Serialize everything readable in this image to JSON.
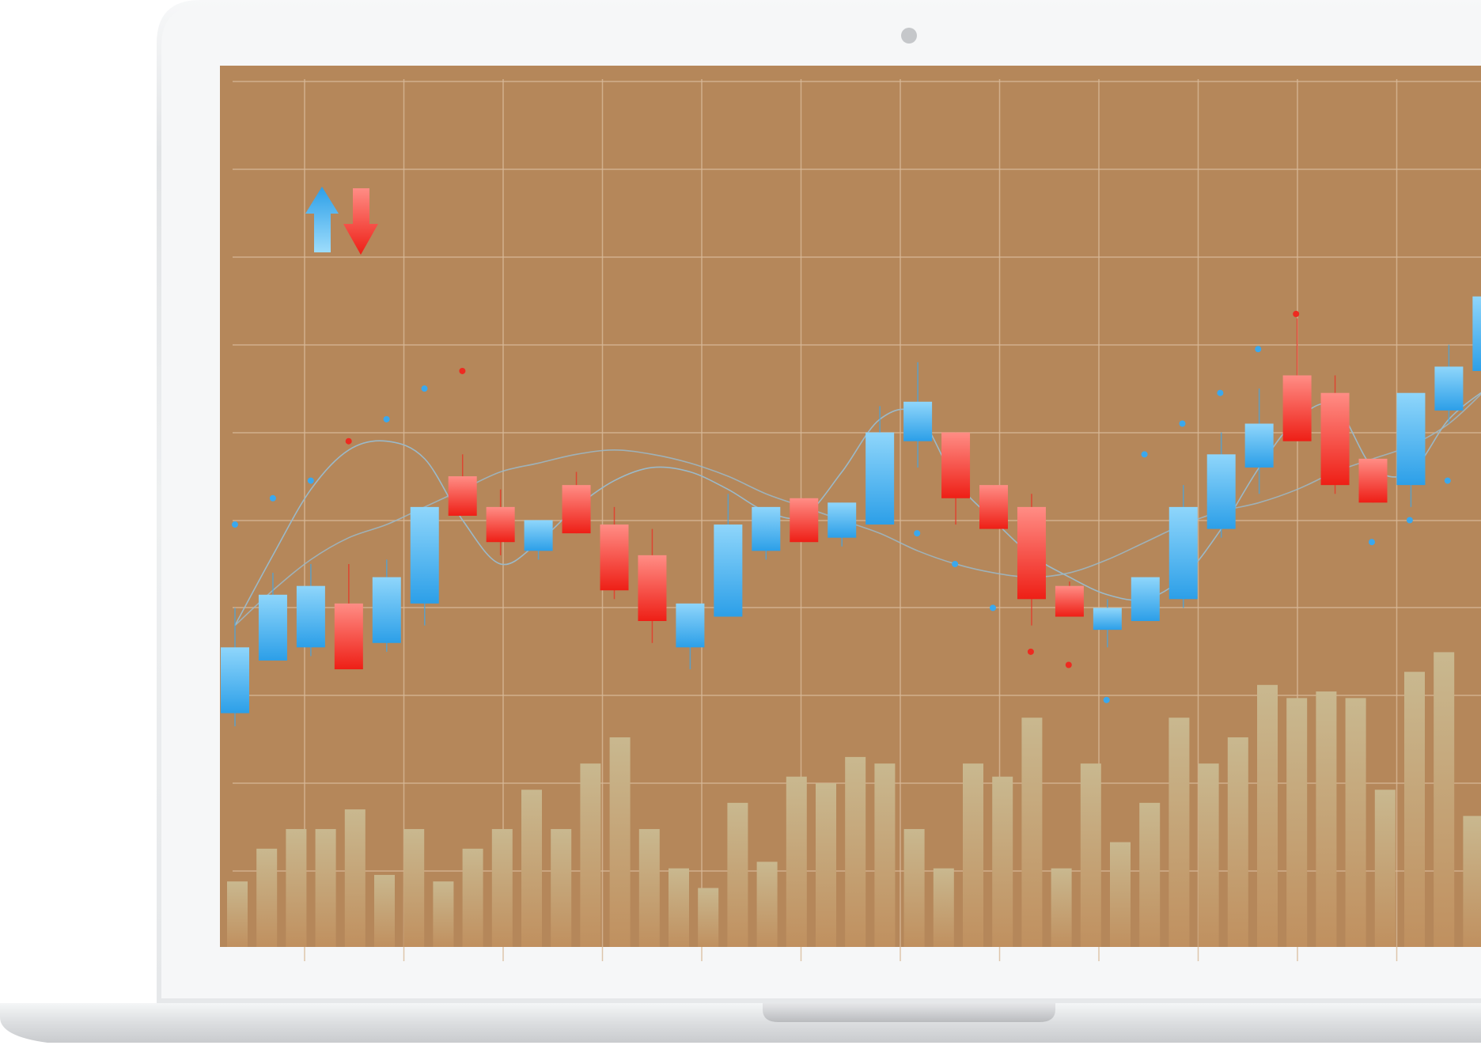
{
  "colors": {
    "screen_background": "#b5875a",
    "grid_line": "#d8b999",
    "bullish": "#3aa8ee",
    "bullish_light": "#8fe3f6",
    "bearish": "#ee2a20",
    "bearish_light": "#ff9a92",
    "volume_bar": "#c3b08a",
    "moving_average": "#9bb9c8",
    "laptop_bezel": "#f3f4f6",
    "laptop_frame": "#d6d8da",
    "laptop_base": "#dfe1e3"
  },
  "icons": {
    "up_arrow": "up-arrow-icon",
    "down_arrow": "down-arrow-icon",
    "camera": "camera-icon"
  },
  "chart_data": {
    "type": "candlestick",
    "title": "",
    "xlabel": "",
    "ylabel": "",
    "ylim": [
      0,
      10
    ],
    "grid": true,
    "legend": "none",
    "candles": [
      {
        "dir": "up",
        "open": 2.8,
        "close": 3.55,
        "high": 4.0,
        "low": 2.65
      },
      {
        "dir": "up",
        "open": 3.4,
        "close": 4.15,
        "high": 4.4,
        "low": 3.4
      },
      {
        "dir": "up",
        "open": 3.55,
        "close": 4.25,
        "high": 4.5,
        "low": 3.45
      },
      {
        "dir": "down",
        "open": 4.05,
        "close": 3.3,
        "high": 4.5,
        "low": 3.3
      },
      {
        "dir": "up",
        "open": 3.6,
        "close": 4.35,
        "high": 4.55,
        "low": 3.5
      },
      {
        "dir": "up",
        "open": 4.05,
        "close": 5.15,
        "high": 5.15,
        "low": 3.8
      },
      {
        "dir": "down",
        "open": 5.5,
        "close": 5.05,
        "high": 5.75,
        "low": 5.05
      },
      {
        "dir": "down",
        "open": 5.15,
        "close": 4.75,
        "high": 5.35,
        "low": 4.6
      },
      {
        "dir": "up",
        "open": 4.65,
        "close": 5.0,
        "high": 5.0,
        "low": 4.55
      },
      {
        "dir": "down",
        "open": 5.4,
        "close": 4.85,
        "high": 5.55,
        "low": 4.85
      },
      {
        "dir": "down",
        "open": 4.95,
        "close": 4.2,
        "high": 5.15,
        "low": 4.1
      },
      {
        "dir": "down",
        "open": 4.6,
        "close": 3.85,
        "high": 4.9,
        "low": 3.6
      },
      {
        "dir": "up",
        "open": 3.55,
        "close": 4.05,
        "high": 4.05,
        "low": 3.3
      },
      {
        "dir": "up",
        "open": 3.9,
        "close": 4.95,
        "high": 5.3,
        "low": 3.9
      },
      {
        "dir": "up",
        "open": 4.65,
        "close": 5.15,
        "high": 5.15,
        "low": 4.55
      },
      {
        "dir": "down",
        "open": 5.25,
        "close": 4.75,
        "high": 5.25,
        "low": 4.75
      },
      {
        "dir": "up",
        "open": 4.8,
        "close": 5.2,
        "high": 5.2,
        "low": 4.7
      },
      {
        "dir": "up",
        "open": 4.95,
        "close": 6.0,
        "high": 6.3,
        "low": 4.95
      },
      {
        "dir": "up",
        "open": 5.9,
        "close": 6.35,
        "high": 6.8,
        "low": 5.6
      },
      {
        "dir": "down",
        "open": 6.0,
        "close": 5.25,
        "high": 6.0,
        "low": 4.95
      },
      {
        "dir": "down",
        "open": 5.4,
        "close": 4.9,
        "high": 5.4,
        "low": 4.9
      },
      {
        "dir": "down",
        "open": 5.15,
        "close": 4.1,
        "high": 5.3,
        "low": 3.8
      },
      {
        "dir": "down",
        "open": 4.25,
        "close": 3.9,
        "high": 4.3,
        "low": 3.9
      },
      {
        "dir": "up",
        "open": 3.75,
        "close": 4.0,
        "high": 4.1,
        "low": 3.55
      },
      {
        "dir": "up",
        "open": 3.85,
        "close": 4.35,
        "high": 4.35,
        "low": 3.85
      },
      {
        "dir": "up",
        "open": 4.1,
        "close": 5.15,
        "high": 5.4,
        "low": 4.0
      },
      {
        "dir": "up",
        "open": 4.9,
        "close": 5.75,
        "high": 6.0,
        "low": 4.8
      },
      {
        "dir": "up",
        "open": 5.6,
        "close": 6.1,
        "high": 6.5,
        "low": 5.3
      },
      {
        "dir": "down",
        "open": 6.65,
        "close": 5.9,
        "high": 7.3,
        "low": 5.9
      },
      {
        "dir": "down",
        "open": 6.45,
        "close": 5.4,
        "high": 6.65,
        "low": 5.3
      },
      {
        "dir": "down",
        "open": 5.7,
        "close": 5.2,
        "high": 5.7,
        "low": 5.2
      },
      {
        "dir": "up",
        "open": 5.4,
        "close": 6.45,
        "high": 6.45,
        "low": 5.15
      },
      {
        "dir": "up",
        "open": 6.25,
        "close": 6.75,
        "high": 7.0,
        "low": 6.1
      },
      {
        "dir": "up",
        "open": 6.7,
        "close": 7.55,
        "high": 7.7,
        "low": 6.7
      }
    ],
    "volume": [
      10,
      15,
      18,
      18,
      21,
      11,
      18,
      10,
      15,
      18,
      24,
      18,
      28,
      32,
      18,
      12,
      9,
      22,
      13,
      26,
      25,
      29,
      28,
      18,
      12,
      28,
      26,
      35,
      12,
      28,
      16,
      22,
      35,
      28,
      32,
      40,
      38,
      39,
      38,
      24,
      42,
      45,
      20
    ],
    "moving_average_1": [
      3.8,
      4.6,
      5.35,
      5.8,
      5.9,
      5.7,
      5.0,
      4.5,
      4.75,
      5.15,
      5.45,
      5.6,
      5.55,
      5.35,
      5.1,
      5.05,
      5.55,
      6.15,
      6.2,
      5.45,
      5.0,
      4.6,
      4.35,
      4.15,
      4.1,
      4.35,
      4.9,
      5.6,
      6.15,
      6.3,
      5.6,
      5.55,
      6.15,
      6.5
    ],
    "moving_average_2": [
      3.8,
      4.2,
      4.55,
      4.8,
      4.95,
      5.15,
      5.35,
      5.55,
      5.65,
      5.75,
      5.8,
      5.75,
      5.65,
      5.5,
      5.3,
      5.15,
      5.0,
      4.85,
      4.65,
      4.5,
      4.4,
      4.35,
      4.4,
      4.55,
      4.75,
      4.95,
      5.1,
      5.2,
      5.35,
      5.55,
      5.7,
      5.85,
      6.1,
      6.5
    ],
    "markers": [
      {
        "x": 0,
        "y": 4.95,
        "dir": "up"
      },
      {
        "x": 1,
        "y": 5.25,
        "dir": "up"
      },
      {
        "x": 2,
        "y": 5.45,
        "dir": "up"
      },
      {
        "x": 3,
        "y": 5.9,
        "dir": "down"
      },
      {
        "x": 4,
        "y": 6.15,
        "dir": "up"
      },
      {
        "x": 5,
        "y": 6.5,
        "dir": "up"
      },
      {
        "x": 6,
        "y": 6.7,
        "dir": "down"
      },
      {
        "x": 18,
        "y": 4.85,
        "dir": "up"
      },
      {
        "x": 19,
        "y": 4.5,
        "dir": "up"
      },
      {
        "x": 20,
        "y": 4.0,
        "dir": "up"
      },
      {
        "x": 21,
        "y": 3.5,
        "dir": "down"
      },
      {
        "x": 22,
        "y": 3.35,
        "dir": "down"
      },
      {
        "x": 23,
        "y": 2.95,
        "dir": "up"
      },
      {
        "x": 24,
        "y": 5.75,
        "dir": "up"
      },
      {
        "x": 25,
        "y": 6.1,
        "dir": "up"
      },
      {
        "x": 26,
        "y": 6.45,
        "dir": "up"
      },
      {
        "x": 27,
        "y": 6.95,
        "dir": "up"
      },
      {
        "x": 28,
        "y": 7.35,
        "dir": "down"
      },
      {
        "x": 30,
        "y": 4.75,
        "dir": "up"
      },
      {
        "x": 31,
        "y": 5.0,
        "dir": "up"
      },
      {
        "x": 32,
        "y": 5.45,
        "dir": "up"
      }
    ]
  }
}
